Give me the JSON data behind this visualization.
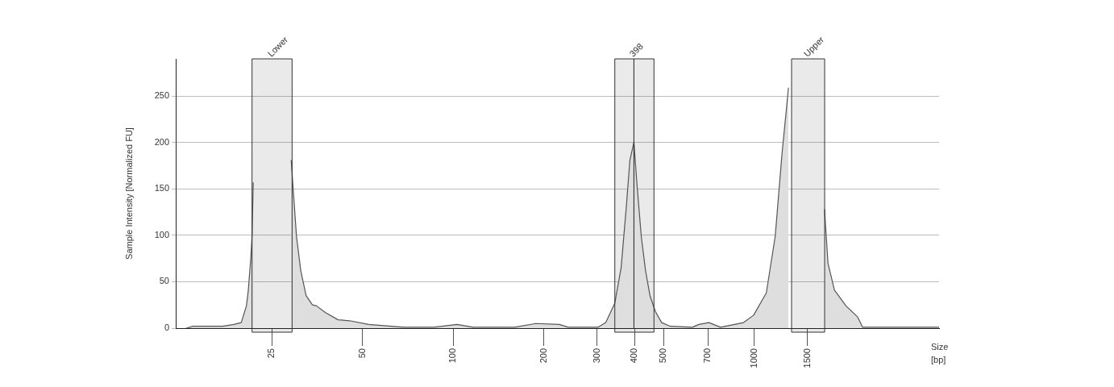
{
  "chart_data": {
    "type": "area",
    "ylabel": "Sample Intensity [Normalized FU]",
    "xlabel": "Size [bp]",
    "log": "x",
    "x": [
      13.0,
      13.7,
      17.2,
      18.7,
      19.8,
      20.6,
      20.9,
      21.3,
      21.5,
      21.7,
      22.1,
      28.4,
      29.0,
      29.5,
      30.2,
      31.2,
      32.5,
      34.1,
      35.2,
      37.6,
      41.5,
      45.3,
      52.4,
      62.3,
      68.5,
      86.2,
      103,
      116.5,
      160,
      188,
      225,
      241,
      303,
      321,
      344,
      361,
      375,
      386,
      398,
      407,
      421,
      435,
      450,
      469,
      492,
      526,
      622,
      654,
      706,
      772,
      920,
      994,
      1095,
      1172,
      1233,
      1297,
      1355,
      1667,
      1708,
      1754,
      1843,
      2013,
      2200,
      2286,
      4100
    ],
    "series": [
      {
        "color": "#555555",
        "values": [
          0,
          2,
          2,
          4,
          6,
          24,
          41,
          76,
          99,
          157,
          null,
          null,
          181,
          146,
          99,
          62,
          35,
          25,
          24,
          17,
          9,
          8,
          4,
          2,
          1,
          1,
          4,
          1,
          1,
          5,
          4,
          1,
          1,
          6,
          27,
          65,
          128,
          181,
          200,
          157,
          99,
          62,
          35,
          18,
          6,
          2,
          1,
          4,
          6,
          1,
          6,
          14,
          38,
          99,
          186,
          259,
          null,
          null,
          128,
          70,
          41,
          24,
          12,
          1,
          1
        ]
      }
    ],
    "xlim": [
      12,
      4100
    ],
    "xticks": [
      25,
      50,
      100,
      200,
      300,
      400,
      500,
      700,
      1000,
      1500
    ],
    "ylim": [
      0,
      290
    ],
    "yticks": [
      0,
      50,
      100,
      150,
      200,
      250
    ],
    "grid": "y",
    "bands": [
      {
        "axis": "x",
        "from": 21.5,
        "to": 29.2,
        "label": "Lower",
        "color": "#333333"
      },
      {
        "axis": "x",
        "from": 344,
        "to": 464,
        "color": "#333333"
      },
      {
        "axis": "x",
        "from": 1328,
        "to": 1710,
        "label": "Upper",
        "color": "#333333"
      }
    ],
    "ref_lines": [
      {
        "axis": "x",
        "value": 398,
        "label": "398",
        "color": "#222222"
      }
    ]
  }
}
